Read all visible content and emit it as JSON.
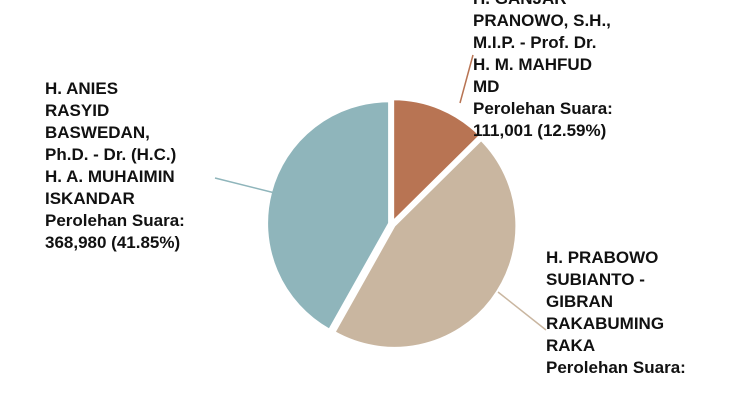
{
  "chart_data": {
    "type": "pie",
    "slices": [
      {
        "name_lines": [
          "H. GANJAR",
          "PRANOWO, S.H.,",
          "M.I.P. - Prof. Dr.",
          "H. M. MAHFUD",
          "MD"
        ],
        "caption": "Perolehan Suara:",
        "value_text": "111,001 (12.59%)",
        "value": 111001,
        "percent": 12.59,
        "color": "#b87453"
      },
      {
        "name_lines": [
          "H. PRABOWO",
          "SUBIANTO -",
          "GIBRAN",
          "RAKABUMING",
          "RAKA"
        ],
        "caption": "Perolehan Suara:",
        "value_text": "",
        "value": 401696,
        "percent": 45.56,
        "color": "#c9b6a0"
      },
      {
        "name_lines": [
          "H. ANIES",
          "RASYID",
          "BASWEDAN,",
          "Ph.D. - Dr. (H.C.)",
          "H. A. MUHAIMIN",
          "ISKANDAR"
        ],
        "caption": "Perolehan Suara:",
        "value_text": "368,980 (41.85%)",
        "value": 368980,
        "percent": 41.85,
        "color": "#8fb5bb"
      }
    ]
  }
}
